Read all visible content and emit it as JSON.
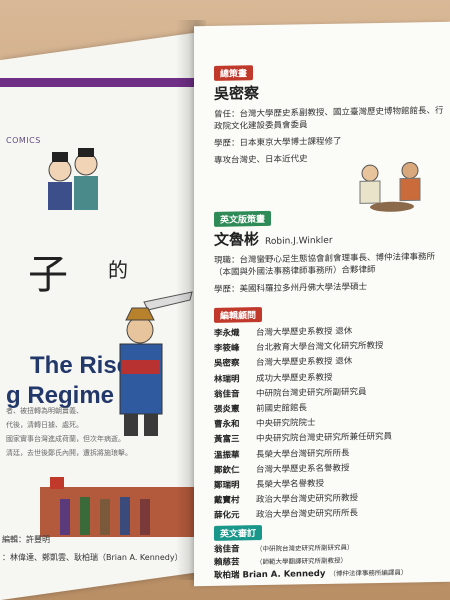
{
  "cover": {
    "comics_label": "COMICS",
    "title_char": "子",
    "title_small": "的",
    "title_en_line1": "The Rise",
    "title_en_line2": "g Regime",
    "desc_lines": [
      "者、被扭轉為明朝賣義、",
      "代後，清轉日據、處死。",
      "國家實事台灣進成荷蘭，但次年病逝。",
      "清廷，去世後鄭氏內鬨，遭拆將施琅擊。"
    ],
    "credit_line1": "編輯：許豐明",
    "credit_line2": "：林偉達、鄭凱雲、耿柏瑞（Brian A. Kennedy）"
  },
  "page": {
    "sections": [
      {
        "tag": "總策畫",
        "name": "吳密察",
        "lines": [
          "曾任：台灣大學歷史系副教授、國立臺灣歷史博物館館長、行政院文化建設委員會委員",
          "學歷：日本東京大學博士課程修了",
          "專攻台灣史、日本近代史"
        ]
      },
      {
        "tag": "英文版策畫",
        "name": "文魯彬",
        "name_en": "Robin.J.Winkler",
        "lines": [
          "現職：台灣蠻野心足生態協會創會理事長、博仲法律事務所（本國與外國法事務律師事務所）合夥律師",
          "學歷：美國科羅拉多州丹佛大學法學碩士"
        ]
      }
    ],
    "advisors_tag": "編輯顧問",
    "advisors": [
      {
        "name": "李永熾",
        "role": "台灣大學歷史系教授 退休"
      },
      {
        "name": "李筱峰",
        "role": "台北教育大學台灣文化研究所教授"
      },
      {
        "name": "吳密察",
        "role": "台灣大學歷史系教授 退休"
      },
      {
        "name": "林瑞明",
        "role": "成功大學歷史系教授"
      },
      {
        "name": "翁佳音",
        "role": "中研院台灣史研究所副研究員"
      },
      {
        "name": "張炎憲",
        "role": "前國史館館長"
      },
      {
        "name": "曹永和",
        "role": "中央研究院院士"
      },
      {
        "name": "黃富三",
        "role": "中央研究院台灣史研究所兼任研究員"
      },
      {
        "name": "溫振華",
        "role": "長榮大學台灣研究所所長"
      },
      {
        "name": "鄭欽仁",
        "role": "台灣大學歷史系名譽教授"
      },
      {
        "name": "鄭瑞明",
        "role": "長榮大學名譽教授"
      },
      {
        "name": "戴寶村",
        "role": "政治大學台灣史研究所教授"
      },
      {
        "name": "薛化元",
        "role": "政治大學台灣史研究所所長"
      }
    ],
    "reviewers_tag": "英文審訂",
    "reviewers": [
      {
        "name": "翁佳音",
        "role": "（中研院台灣史研究所副研究員）"
      },
      {
        "name": "賴慈芸",
        "role": "（師範大學翻譯研究所副教授）"
      },
      {
        "name": "耿柏瑞 Brian A. Kennedy",
        "role": "（博仲法律事務所編譯員）"
      }
    ]
  }
}
